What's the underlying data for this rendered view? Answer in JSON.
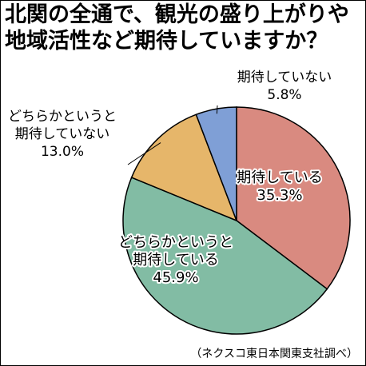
{
  "title_lines": [
    "北関の全通で、観光の盛り上がりや",
    "地域活性など期待していますか？"
  ],
  "source": "（ネクスコ東日本関東支社調べ）",
  "colors": {
    "kitai_shiteiru": "#d98a80",
    "dochiraka_kitai": "#82bca4",
    "dochiraka_kitai_shinai": "#e6b66a",
    "kitai_shinai": "#7f9fd6"
  },
  "chart_data": {
    "type": "pie",
    "start_angle_deg": 0,
    "direction": "clockwise",
    "slices": [
      {
        "label_lines": [
          "期待している"
        ],
        "value": 35.3,
        "value_label": "35.3%",
        "color_key": "kitai_shiteiru",
        "label_position": "inside"
      },
      {
        "label_lines": [
          "どちらかというと",
          "期待している"
        ],
        "value": 45.9,
        "value_label": "45.9%",
        "color_key": "dochiraka_kitai",
        "label_position": "inside"
      },
      {
        "label_lines": [
          "どちらかというと",
          "期待していない"
        ],
        "value": 13.0,
        "value_label": "13.0%",
        "color_key": "dochiraka_kitai_shinai",
        "label_position": "outside-left"
      },
      {
        "label_lines": [
          "期待していない"
        ],
        "value": 5.8,
        "value_label": "5.8%",
        "color_key": "kitai_shinai",
        "label_position": "outside-top"
      }
    ]
  }
}
